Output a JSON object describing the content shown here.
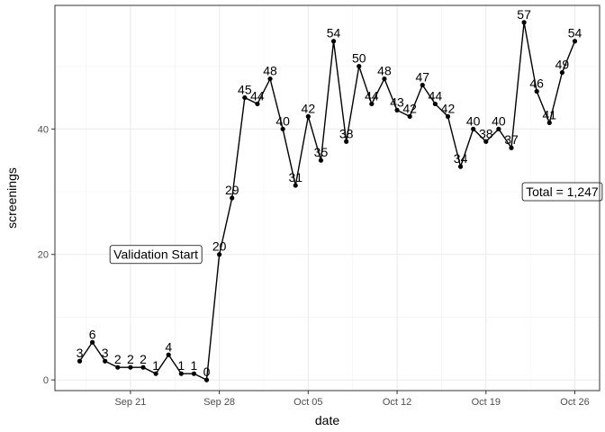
{
  "chart_data": {
    "type": "line",
    "xlabel": "date",
    "ylabel": "screenings",
    "x_ticks": [
      "Sep 21",
      "Sep 28",
      "Oct 05",
      "Oct 12",
      "Oct 19",
      "Oct 26"
    ],
    "y_ticks": [
      "0",
      "20",
      "40"
    ],
    "ylim": [
      -1.7,
      59.7
    ],
    "grid": true,
    "series": [
      {
        "x": [
          "2021-09-17",
          "2021-09-18",
          "2021-09-19",
          "2021-09-20",
          "2021-09-21",
          "2021-09-22",
          "2021-09-23",
          "2021-09-24",
          "2021-09-25",
          "2021-09-26",
          "2021-09-27",
          "2021-09-28",
          "2021-09-29",
          "2021-09-30",
          "2021-10-01",
          "2021-10-02",
          "2021-10-03",
          "2021-10-04",
          "2021-10-05",
          "2021-10-06",
          "2021-10-07",
          "2021-10-08",
          "2021-10-09",
          "2021-10-10",
          "2021-10-11",
          "2021-10-12",
          "2021-10-13",
          "2021-10-14",
          "2021-10-15",
          "2021-10-16",
          "2021-10-17",
          "2021-10-18",
          "2021-10-19",
          "2021-10-20",
          "2021-10-21",
          "2021-10-22",
          "2021-10-23",
          "2021-10-24",
          "2021-10-25",
          "2021-10-26"
        ],
        "values": [
          3,
          6,
          3,
          2,
          2,
          2,
          1,
          4,
          1,
          1,
          0,
          20,
          29,
          45,
          44,
          48,
          40,
          31,
          42,
          35,
          54,
          38,
          50,
          44,
          48,
          43,
          42,
          47,
          44,
          42,
          34,
          40,
          38,
          40,
          37,
          57,
          46,
          41,
          49,
          54
        ]
      }
    ],
    "annotations": [
      {
        "text": "Validation Start",
        "x": "2021-09-23",
        "y": 20
      },
      {
        "text": "Total = 1,247",
        "x": "2021-10-25",
        "y": 30
      }
    ]
  }
}
